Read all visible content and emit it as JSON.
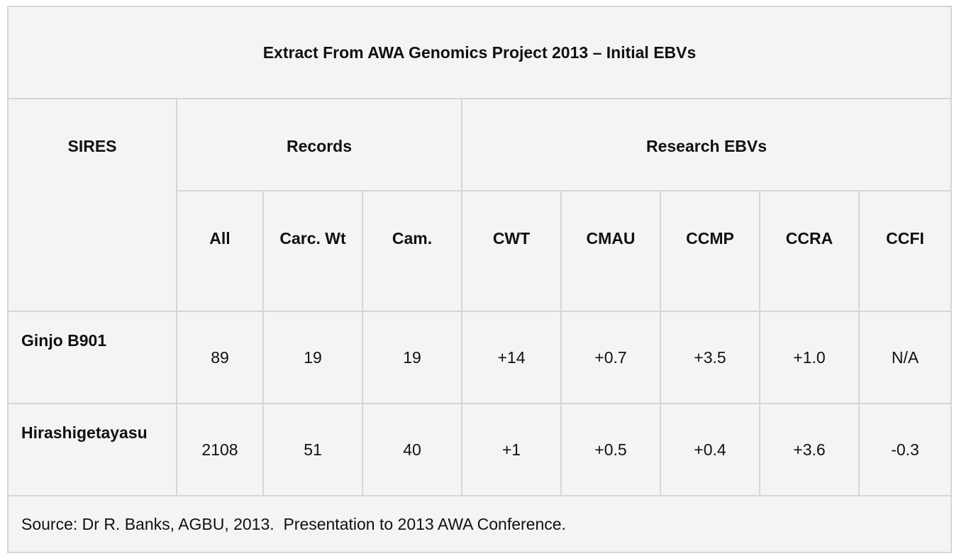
{
  "table": {
    "title": "Extract From AWA Genomics Project 2013 – Initial EBVs",
    "header": {
      "sires": "SIRES",
      "records": "Records",
      "research": "Research EBVs",
      "columns": [
        "All",
        "Carc. Wt",
        "Cam.",
        "CWT",
        "CMAU",
        "CCMP",
        "CCRA",
        "CCFI"
      ]
    },
    "rows": [
      [
        "Ginjo B901",
        "89",
        "19",
        "19",
        "+14",
        "+0.7",
        "+3.5",
        "+1.0",
        "N/A"
      ],
      [
        "Hirashigetayasu",
        "2108",
        "51",
        "40",
        "+1",
        "+0.5",
        "+0.4",
        "+3.6",
        "-0.3"
      ]
    ],
    "source": "Source: Dr R. Banks, AGBU, 2013.  Presentation to 2013 AWA Conference."
  }
}
